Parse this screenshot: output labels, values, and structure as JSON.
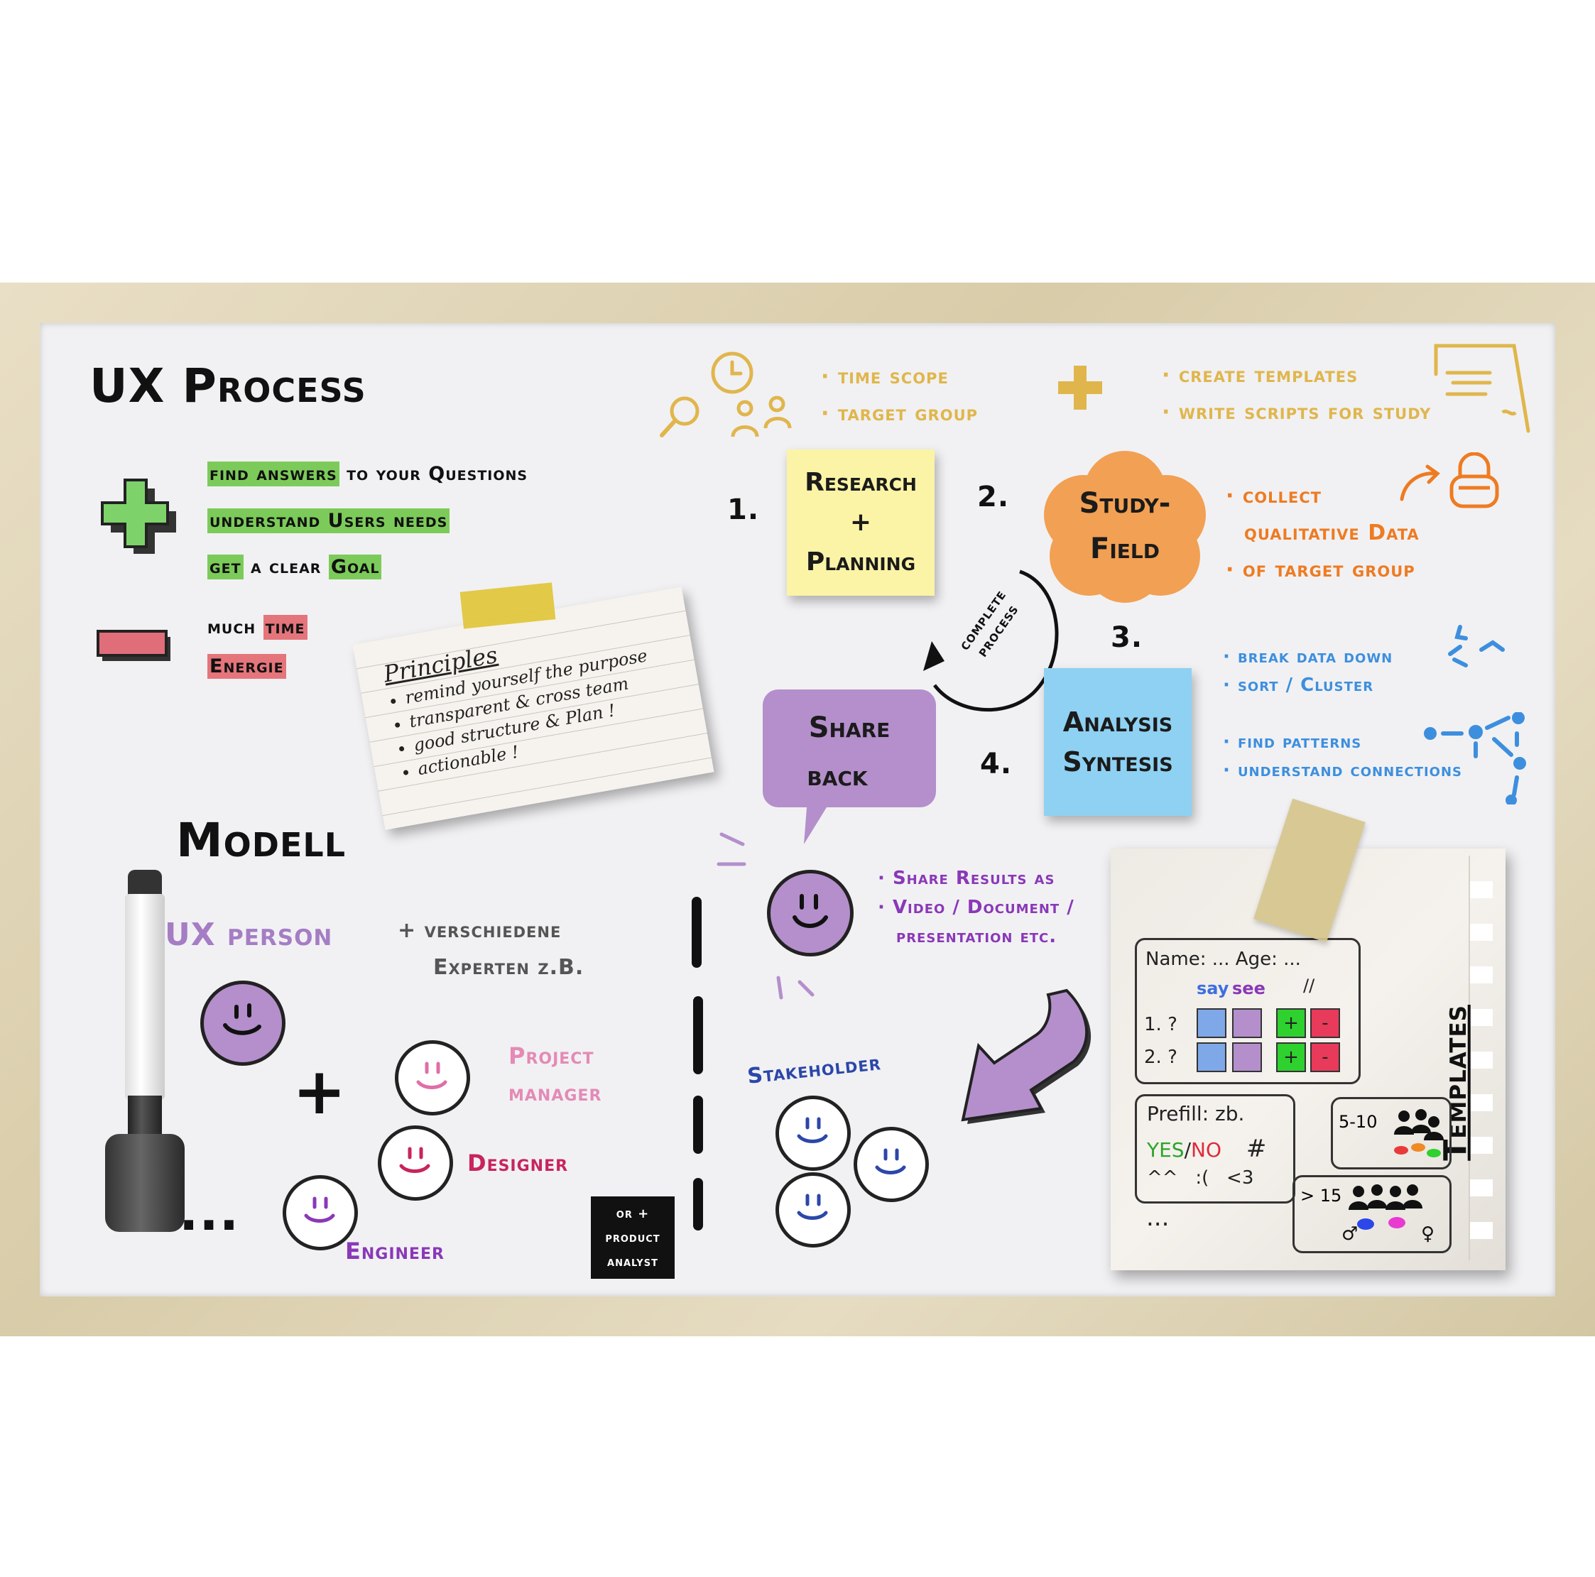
{
  "title": "UX Process",
  "pros": {
    "line1": {
      "hl": "find answers",
      "rest": "to your Questions"
    },
    "line2": "understand Users needs",
    "line3": {
      "get": "get",
      "mid": "a clear",
      "goal": "Goal"
    }
  },
  "cons": {
    "line1": {
      "much": "much",
      "time": "time"
    },
    "line2": "Energie"
  },
  "principles": {
    "title": "Principles",
    "items": [
      "remind yourself the purpose",
      "transparent & cross team",
      "good structure & Plan !",
      "actionable !"
    ]
  },
  "planning_notes": [
    "time scope",
    "target group"
  ],
  "template_notes": [
    "create templates",
    "write scripts for study"
  ],
  "steps": {
    "n1": "1.",
    "n2": "2.",
    "n3": "3.",
    "n4": "4.",
    "research": [
      "Research",
      "+",
      "Planning"
    ],
    "study": [
      "Study-",
      "Field"
    ],
    "analysis": [
      "Analysis",
      "Syntesis"
    ],
    "share": [
      "Share",
      "back"
    ]
  },
  "cycle_label": [
    "complete",
    "process"
  ],
  "study_notes": [
    "collect",
    "qualitative Data",
    "of target group"
  ],
  "analysis_notes": [
    "break data down",
    "sort /  Cluster",
    "find patterns",
    "understand connections"
  ],
  "share_notes": [
    "Share Results as",
    "Video / Document /",
    "presentation etc."
  ],
  "modell": {
    "title": "Modell",
    "ux_person": "UX person",
    "experts": [
      "+ verschiedene",
      "Experten z.B."
    ],
    "plus": "+",
    "roles": {
      "pm": [
        "Project",
        "manager"
      ],
      "designer": "Designer",
      "engineer": "Engineer"
    },
    "ellipsis": "...",
    "analyst_badge": [
      "or +",
      "product",
      "analyst"
    ],
    "stakeholder": "Stakeholder"
  },
  "templates_card": {
    "title": "Templates",
    "form_header": "Name: ... Age: ...",
    "columns": [
      "say",
      "see",
      "//"
    ],
    "rows": [
      "1. ?",
      "2. ?"
    ],
    "prefill_title": "Prefill: zb.",
    "yes": "YES",
    "slash": "/",
    "no": "NO",
    "hash": "#",
    "symbols": "^^   :(   <3",
    "group_small": "5-10",
    "group_large": "> 15",
    "more": "..."
  },
  "colors": {
    "green": "#7ccb5a",
    "red": "#e4757b",
    "yellow_note": "#fbf4a6",
    "orange_note": "#f2a053",
    "blue_note": "#8fd1f2",
    "purple_note": "#b48fcc",
    "annotation_yellow": "#e0b64c",
    "annotation_orange": "#ee7b22",
    "annotation_blue": "#3d8fde",
    "annotation_purple": "#8a38b8",
    "face_purple": "#b48fcc",
    "stakeholder_blue": "#2c47a9"
  },
  "icons": [
    "plus-icon",
    "minus-icon",
    "clock-icon",
    "magnifier-icon",
    "people-icon",
    "document-icon",
    "arrow-icon",
    "lock-icon",
    "marker-icon",
    "tape-icon"
  ]
}
